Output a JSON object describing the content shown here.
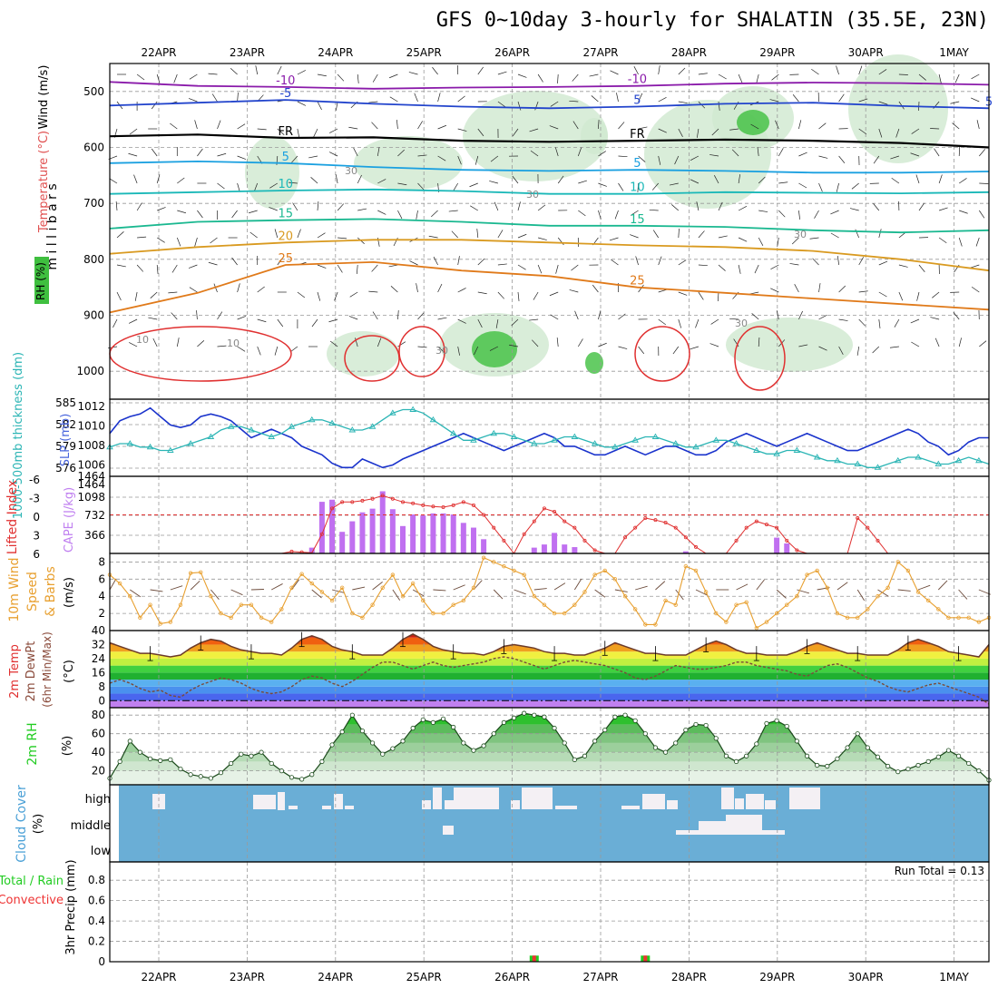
{
  "title": "GFS 0~10day 3-hourly for SHALATIN (35.5E, 23N)",
  "colors": {
    "frame": "#000000",
    "grid": "#999999",
    "rh_green": "#3fbf3f",
    "cloud_blue": "#6aaed6",
    "cape_purple": "#c070f0",
    "slp_blue": "#1a33cc",
    "thick_cyan": "#2cb5b5",
    "li_red": "#e03030",
    "wind_orange": "#e8a030",
    "rain_green": "#22cc22",
    "conv_red": "#ee3333"
  },
  "chart_data": [
    {
      "type": "contour",
      "name": "upper-air cross section",
      "ylabel": "m i l l i b a r s",
      "left_labels": [
        "Wind (m/s)",
        "Temperature (°C)",
        "RH (%)"
      ],
      "y_ticks": [
        "500",
        "600",
        "700",
        "800",
        "900",
        "1000"
      ],
      "ylim": [
        450,
        1050
      ],
      "x_ticks": [
        "22APR",
        "23APR",
        "24APR",
        "25APR",
        "26APR",
        "27APR",
        "28APR",
        "29APR",
        "30APR",
        "1MAY"
      ],
      "series": [
        {
          "name": "-10",
          "level_mb": [
            483,
            490,
            492,
            495,
            493,
            492,
            490,
            486,
            484,
            485,
            488
          ],
          "labels": [
            "-10",
            "-10"
          ]
        },
        {
          "name": "-5",
          "level_mb": [
            525,
            520,
            515,
            522,
            527,
            530,
            527,
            522,
            520,
            526,
            530
          ],
          "labels": [
            "-5",
            "5",
            "5"
          ]
        },
        {
          "name": "FR",
          "level_mb": [
            580,
            577,
            583,
            582,
            588,
            590,
            588,
            586,
            588,
            592,
            600
          ],
          "labels": [
            "FR",
            "FR"
          ]
        },
        {
          "name": "5",
          "level_mb": [
            628,
            625,
            628,
            635,
            640,
            642,
            640,
            642,
            645,
            645,
            643
          ],
          "labels": [
            "5",
            "5"
          ]
        },
        {
          "name": "10",
          "level_mb": [
            683,
            680,
            677,
            675,
            678,
            683,
            683,
            680,
            681,
            682,
            680
          ],
          "labels": [
            "10",
            "10"
          ]
        },
        {
          "name": "15",
          "level_mb": [
            745,
            733,
            730,
            728,
            733,
            740,
            740,
            742,
            748,
            752,
            748
          ],
          "labels": [
            "15",
            "15"
          ]
        },
        {
          "name": "20",
          "level_mb": [
            790,
            778,
            770,
            765,
            765,
            770,
            775,
            778,
            785,
            800,
            820
          ],
          "labels": [
            "20"
          ]
        },
        {
          "name": "25",
          "level_mb": [
            895,
            860,
            810,
            805,
            820,
            830,
            850,
            860,
            870,
            880,
            890
          ],
          "labels": [
            "25",
            "25"
          ]
        }
      ],
      "contour_labels_rh": [
        "30",
        "30",
        "30",
        "10",
        "10",
        "30",
        "30"
      ]
    },
    {
      "type": "line",
      "name": "SLP and thickness",
      "ylabel_left": "1000-500mb thickness (dm)",
      "ylabel_right": "SLP (mb)",
      "y_ticks_left": [
        "585",
        "582",
        "579",
        "576"
      ],
      "y_ticks_right": [
        "1012",
        "1010",
        "1008",
        "1006",
        "1464"
      ],
      "series": [
        {
          "name": "SLP",
          "values": [
            1009.5,
            1011,
            1011.5,
            1011.8,
            1012.5,
            1011.5,
            1010.5,
            1010.2,
            1010.5,
            1011.5,
            1011.8,
            1011.5,
            1011,
            1010,
            1009,
            1009.5,
            1010,
            1009.5,
            1009,
            1008,
            1007.5,
            1007,
            1006,
            1005.5,
            1005.5,
            1006.5,
            1006,
            1005.5,
            1005.8,
            1006.5,
            1007,
            1007.5,
            1008,
            1008.5,
            1009,
            1009.5,
            1009,
            1008.5,
            1008,
            1007.5,
            1008,
            1008.5,
            1009,
            1009.5,
            1009,
            1008,
            1008,
            1007.5,
            1007,
            1007,
            1007.5,
            1008,
            1007.5,
            1007,
            1007.5,
            1008,
            1008,
            1007.5,
            1007,
            1007,
            1007.5,
            1008.5,
            1009,
            1009.5,
            1009,
            1008.5,
            1008,
            1008.5,
            1009,
            1009.5,
            1009,
            1008.5,
            1008,
            1007.5,
            1007.5,
            1008,
            1008.5,
            1009,
            1009.5,
            1010,
            1009.5,
            1008.5,
            1008,
            1007,
            1007.5,
            1008.5,
            1009,
            1009
          ]
        },
        {
          "name": "Thickness",
          "values": [
            579,
            579.5,
            579.5,
            579,
            579,
            578.5,
            578.5,
            579,
            579.5,
            580,
            580.5,
            581.5,
            582,
            582,
            581.5,
            581,
            580.5,
            581,
            582,
            582.5,
            583,
            583,
            582.5,
            582,
            581.5,
            581.5,
            582,
            583,
            584,
            584.5,
            584.5,
            584,
            583,
            582,
            581,
            580,
            580,
            580.5,
            581,
            581,
            580.5,
            580,
            579.5,
            579.5,
            580,
            580.5,
            580.5,
            580,
            579.5,
            579,
            579,
            579.5,
            580,
            580.5,
            580.5,
            580,
            579.5,
            579,
            579,
            579.5,
            580,
            580,
            579.5,
            579,
            578.5,
            578,
            578,
            578.5,
            578.5,
            578,
            577.5,
            577,
            577,
            576.5,
            576.5,
            576,
            576,
            576.5,
            577,
            577.5,
            577.5,
            577,
            576.5,
            576.5,
            577,
            577.5,
            577,
            576.5
          ]
        }
      ]
    },
    {
      "type": "bar",
      "name": "CAPE and Lifted Index",
      "ylabel_left": "Lifted Index",
      "ylabel_right": "CAPE (J/kg)",
      "y_ticks_left": [
        "-6",
        "-3",
        "0",
        "3",
        "6"
      ],
      "y_ticks_right": [
        "1098",
        "732",
        "366",
        "1464"
      ],
      "ylim_cape": [
        0,
        1464
      ],
      "cape_bars": [
        0,
        0,
        0,
        0,
        0,
        0,
        0,
        0,
        0,
        0,
        0,
        0,
        0,
        0,
        0,
        0,
        0,
        0,
        0,
        0,
        110,
        980,
        1020,
        410,
        610,
        780,
        850,
        1180,
        840,
        520,
        740,
        720,
        760,
        760,
        740,
        580,
        490,
        270,
        0,
        0,
        0,
        0,
        110,
        170,
        390,
        170,
        120,
        0,
        0,
        0,
        0,
        0,
        0,
        0,
        0,
        0,
        0,
        40,
        0,
        0,
        0,
        0,
        0,
        0,
        0,
        0,
        300,
        190,
        0,
        0,
        0,
        0,
        0,
        0,
        0,
        0,
        0,
        0,
        0,
        0,
        0,
        0,
        0,
        0,
        0,
        0,
        0,
        0
      ],
      "lifted_index": [
        6,
        6,
        6,
        6,
        6,
        6,
        6,
        6,
        6,
        6,
        6,
        6,
        6,
        6,
        6,
        6,
        6,
        6,
        5.7,
        5.8,
        5.9,
        3,
        -1,
        -2,
        -2,
        -2.2,
        -2.5,
        -3,
        -2.5,
        -2,
        -1.8,
        -1.5,
        -1.3,
        -1.2,
        -1.5,
        -2,
        -1.5,
        0,
        2,
        4,
        6,
        3,
        1,
        -1,
        -0.5,
        1,
        2,
        4,
        5.5,
        6,
        6,
        3.5,
        2,
        0.5,
        0.8,
        1.2,
        2,
        3.5,
        5,
        6,
        6,
        6,
        4,
        2,
        1,
        1.5,
        2,
        4,
        5.5,
        6,
        6,
        6,
        6,
        6,
        0.5,
        2,
        4,
        6,
        6,
        6,
        6,
        6,
        6,
        6,
        6,
        6,
        6,
        6
      ],
      "ref_line": 0
    },
    {
      "type": "line",
      "name": "10m Wind Speed & Barbs",
      "ylabel": "10m Wind Speed & Barbs (m/s)",
      "y_ticks": [
        "8",
        "6",
        "4",
        "2"
      ],
      "ylim": [
        0,
        9
      ],
      "values": [
        6.5,
        5.5,
        4,
        1.5,
        3,
        0.8,
        1,
        3,
        6.7,
        6.8,
        4,
        2,
        1.5,
        3,
        3,
        1.5,
        1,
        2.5,
        5,
        6.6,
        5.5,
        4.5,
        3.5,
        5,
        2,
        1.5,
        3,
        5,
        6.5,
        4,
        5.5,
        3.5,
        2,
        2,
        3,
        3.5,
        5,
        8.5,
        8,
        7.5,
        7,
        6.5,
        4,
        3,
        2,
        2,
        3,
        4.5,
        6.5,
        7,
        6,
        4,
        2.5,
        0.7,
        0.7,
        3.5,
        3,
        7.5,
        7,
        4.5,
        2,
        1,
        3,
        3.3,
        0.3,
        1,
        2,
        3,
        4,
        6.5,
        7,
        5,
        2,
        1.5,
        1.5,
        2.5,
        4,
        5,
        8,
        7,
        4.5,
        3.5,
        2.5,
        1.5,
        1.5,
        1.5,
        1,
        1.5
      ]
    },
    {
      "type": "area",
      "name": "2m Temp / DewPt",
      "ylabel": "2m Temp 2m DewPt (6hr Min/Max) (°C)",
      "y_ticks": [
        "40",
        "32",
        "24",
        "16",
        "8",
        "0"
      ],
      "ylim": [
        -4,
        40
      ],
      "temp": [
        33,
        31,
        29,
        27,
        27,
        26,
        25,
        26,
        30,
        33,
        35,
        34,
        31,
        29,
        28,
        27,
        27,
        26,
        30,
        35,
        37,
        35,
        31,
        29,
        28,
        26,
        26,
        26,
        30,
        35,
        38,
        35,
        31,
        29,
        28,
        27,
        27,
        26,
        28,
        31,
        32,
        31,
        30,
        28,
        27,
        27,
        26,
        26,
        28,
        30,
        33,
        31,
        29,
        27,
        27,
        26,
        26,
        26,
        29,
        32,
        34,
        32,
        29,
        27,
        27,
        26,
        26,
        26,
        28,
        31,
        33,
        31,
        29,
        27,
        27,
        26,
        26,
        26,
        29,
        33,
        35,
        33,
        31,
        28,
        27,
        26,
        25,
        32
      ],
      "dewpt": [
        10,
        12,
        10,
        7,
        5,
        6,
        3,
        2,
        6,
        9,
        11,
        13,
        12,
        10,
        7,
        5,
        4,
        5,
        8,
        12,
        14,
        13,
        10,
        8,
        11,
        15,
        19,
        22,
        22,
        20,
        18,
        20,
        22,
        20,
        19,
        20,
        21,
        22,
        24,
        25,
        24,
        22,
        20,
        18,
        20,
        22,
        23,
        22,
        21,
        20,
        18,
        16,
        13,
        12,
        14,
        17,
        20,
        19,
        18,
        18,
        19,
        20,
        22,
        22,
        20,
        19,
        18,
        17,
        15,
        14,
        17,
        20,
        21,
        19,
        16,
        13,
        11,
        8,
        6,
        5,
        7,
        9,
        10,
        8,
        6,
        4,
        2,
        -2
      ]
    },
    {
      "type": "area",
      "name": "2m RH",
      "ylabel": "2m RH (%)",
      "y_ticks": [
        "80",
        "60",
        "40",
        "20"
      ],
      "ylim": [
        5,
        88
      ],
      "values": [
        12,
        30,
        52,
        40,
        33,
        31,
        32,
        22,
        16,
        14,
        12,
        18,
        28,
        38,
        36,
        40,
        28,
        20,
        13,
        11,
        16,
        30,
        48,
        62,
        80,
        63,
        50,
        38,
        44,
        52,
        66,
        75,
        72,
        76,
        67,
        50,
        42,
        47,
        60,
        72,
        77,
        82,
        80,
        78,
        66,
        50,
        32,
        36,
        52,
        64,
        78,
        80,
        74,
        60,
        45,
        40,
        50,
        64,
        70,
        69,
        55,
        36,
        30,
        36,
        49,
        71,
        74,
        68,
        52,
        36,
        26,
        25,
        33,
        45,
        60,
        45,
        35,
        25,
        19,
        22,
        26,
        30,
        35,
        42,
        36,
        28,
        20,
        10
      ]
    },
    {
      "type": "heatmap",
      "name": "Cloud Cover",
      "ylabel": "Cloud Cover (%)",
      "rows": [
        "high",
        "middle",
        "low"
      ]
    },
    {
      "type": "bar",
      "name": "3hr Precip",
      "ylabel": "3hr Precip (mm)",
      "legend_total": "Total / Rain",
      "legend_conv": "Convective",
      "y_ticks": [
        "0.8",
        "0.6",
        "0.4",
        "0.2",
        "0"
      ],
      "y_ticks_all": [
        "0",
        "0.2",
        "0.4",
        "0.6",
        "0.8"
      ],
      "ylim": [
        0,
        0.98
      ],
      "precip": [
        {
          "index": 42,
          "value": 0.06
        },
        {
          "index": 53,
          "value": 0.06
        }
      ],
      "run_total": "Run Total = 0.13"
    }
  ],
  "x_axis": {
    "labels": [
      "22APR",
      "23APR",
      "24APR",
      "25APR",
      "26APR",
      "27APR",
      "28APR",
      "29APR",
      "30APR",
      "1MAY"
    ]
  }
}
